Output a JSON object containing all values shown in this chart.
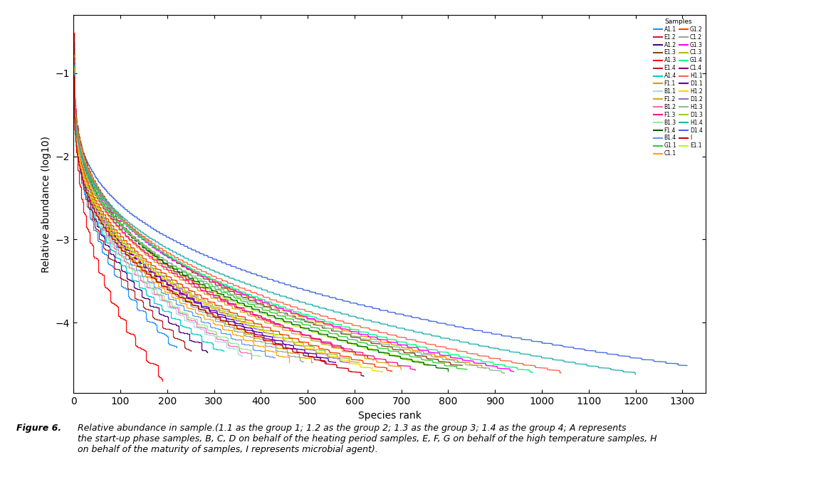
{
  "title": "",
  "xlabel": "Species rank",
  "ylabel": "Relative abundance (log10)",
  "xlim": [
    0,
    1350
  ],
  "ylim": [
    -4.85,
    -0.3
  ],
  "yticks": [
    -4,
    -3,
    -2,
    -1
  ],
  "xticks": [
    0,
    100,
    200,
    300,
    400,
    500,
    600,
    700,
    800,
    900,
    1000,
    1100,
    1200,
    1300
  ],
  "legend_title": "Samples",
  "background_color": "#ffffff",
  "samples": [
    {
      "label": "A1.1",
      "color": "#1E90FF",
      "n_species": 220,
      "start": -0.58,
      "end": -4.3
    },
    {
      "label": "A1.2",
      "color": "#4B0082",
      "n_species": 285,
      "start": -0.63,
      "end": -4.33
    },
    {
      "label": "A1.3",
      "color": "#FF0000",
      "n_species": 190,
      "start": -0.52,
      "end": -4.65
    },
    {
      "label": "A1.4",
      "color": "#00CED1",
      "n_species": 320,
      "start": -0.68,
      "end": -4.36
    },
    {
      "label": "B1.1",
      "color": "#ADD8E6",
      "n_species": 360,
      "start": -0.72,
      "end": -4.38
    },
    {
      "label": "B1.2",
      "color": "#FF69B4",
      "n_species": 380,
      "start": -0.74,
      "end": -4.4
    },
    {
      "label": "B1.3",
      "color": "#90EE90",
      "n_species": 400,
      "start": -0.76,
      "end": -4.42
    },
    {
      "label": "B1.4",
      "color": "#6495ED",
      "n_species": 430,
      "start": -0.78,
      "end": -4.43
    },
    {
      "label": "C1.1",
      "color": "#FFA500",
      "n_species": 460,
      "start": -0.8,
      "end": -4.44
    },
    {
      "label": "C1.2",
      "color": "#A0A0A0",
      "n_species": 490,
      "start": -0.82,
      "end": -4.45
    },
    {
      "label": "C1.3",
      "color": "#B8B800",
      "n_species": 510,
      "start": -0.84,
      "end": -4.46
    },
    {
      "label": "C1.4",
      "color": "#800080",
      "n_species": 540,
      "start": -0.86,
      "end": -4.47
    },
    {
      "label": "D1.1",
      "color": "#5500BB",
      "n_species": 560,
      "start": -0.88,
      "end": -4.48
    },
    {
      "label": "D1.2",
      "color": "#9966CC",
      "n_species": 590,
      "start": -0.9,
      "end": -4.49
    },
    {
      "label": "D1.3",
      "color": "#9ACD32",
      "n_species": 610,
      "start": -0.91,
      "end": -4.49
    },
    {
      "label": "D1.4",
      "color": "#4169E1",
      "n_species": 1310,
      "start": -0.93,
      "end": -4.52
    },
    {
      "label": "E1.1",
      "color": "#ADFF2F",
      "n_species": 760,
      "start": -0.95,
      "end": -4.51
    },
    {
      "label": "E1.2",
      "color": "#DC143C",
      "n_species": 640,
      "start": -0.62,
      "end": -4.44
    },
    {
      "label": "E1.3",
      "color": "#8B4513",
      "n_species": 830,
      "start": -0.72,
      "end": -4.53
    },
    {
      "label": "E1.4",
      "color": "#B22222",
      "n_species": 250,
      "start": -0.6,
      "end": -4.32
    },
    {
      "label": "F1.1",
      "color": "#FF8C00",
      "n_species": 880,
      "start": -0.78,
      "end": -4.54
    },
    {
      "label": "F1.2",
      "color": "#DAA520",
      "n_species": 700,
      "start": -0.8,
      "end": -4.55
    },
    {
      "label": "F1.3",
      "color": "#FF1493",
      "n_species": 730,
      "start": -0.82,
      "end": -4.56
    },
    {
      "label": "F1.4",
      "color": "#006400",
      "n_species": 800,
      "start": -0.84,
      "end": -4.57
    },
    {
      "label": "G1.1",
      "color": "#32CD32",
      "n_species": 840,
      "start": -0.86,
      "end": -4.57
    },
    {
      "label": "G1.2",
      "color": "#FF4500",
      "n_species": 680,
      "start": -0.87,
      "end": -4.58
    },
    {
      "label": "G1.3",
      "color": "#FF00FF",
      "n_species": 940,
      "start": -0.88,
      "end": -4.58
    },
    {
      "label": "G1.4",
      "color": "#00FF7F",
      "n_species": 980,
      "start": -0.9,
      "end": -4.59
    },
    {
      "label": "H1.1",
      "color": "#FF6347",
      "n_species": 1040,
      "start": -0.92,
      "end": -4.59
    },
    {
      "label": "H1.2",
      "color": "#FFD700",
      "n_species": 660,
      "start": -0.95,
      "end": -4.6
    },
    {
      "label": "H1.3",
      "color": "#8FBC8F",
      "n_species": 920,
      "start": -0.97,
      "end": -4.6
    },
    {
      "label": "H1.4",
      "color": "#20B2AA",
      "n_species": 1200,
      "start": -1.0,
      "end": -4.61
    },
    {
      "label": "I",
      "color": "#CC0000",
      "n_species": 620,
      "start": -1.02,
      "end": -4.63
    }
  ],
  "legend_entries_col1": [
    [
      "A1.1",
      "#1E90FF"
    ],
    [
      "A1.2",
      "#4B0082"
    ],
    [
      "A1.3",
      "#FF0000"
    ],
    [
      "A1.4",
      "#00CED1"
    ],
    [
      "B1.1",
      "#ADD8E6"
    ],
    [
      "B1.2",
      "#FF69B4"
    ],
    [
      "B1.3",
      "#90EE90"
    ],
    [
      "B1.4",
      "#6495ED"
    ],
    [
      "C1.1",
      "#FFA500"
    ],
    [
      "C1.2",
      "#A0A0A0"
    ],
    [
      "C1.3",
      "#B8B800"
    ],
    [
      "C1.4",
      "#800080"
    ],
    [
      "D1.1",
      "#5500BB"
    ],
    [
      "D1.2",
      "#9966CC"
    ],
    [
      "D1.3",
      "#9ACD32"
    ],
    [
      "D1.4",
      "#4169E1"
    ],
    [
      "E1.1",
      "#ADFF2F"
    ]
  ],
  "legend_entries_col2": [
    [
      "E1.2",
      "#DC143C"
    ],
    [
      "E1.3",
      "#8B4513"
    ],
    [
      "E1.4",
      "#B22222"
    ],
    [
      "F1.1",
      "#FF8C00"
    ],
    [
      "F1.2",
      "#DAA520"
    ],
    [
      "F1.3",
      "#FF1493"
    ],
    [
      "F1.4",
      "#006400"
    ],
    [
      "G1.1",
      "#32CD32"
    ],
    [
      "G1.2",
      "#FF4500"
    ],
    [
      "G1.3",
      "#FF00FF"
    ],
    [
      "G1.4",
      "#00FF7F"
    ],
    [
      "H1.1",
      "#FF6347"
    ],
    [
      "H1.2",
      "#FFD700"
    ],
    [
      "H1.3",
      "#8FBC8F"
    ],
    [
      "H1.4",
      "#20B2AA"
    ],
    [
      "I",
      "#CC0000"
    ]
  ]
}
